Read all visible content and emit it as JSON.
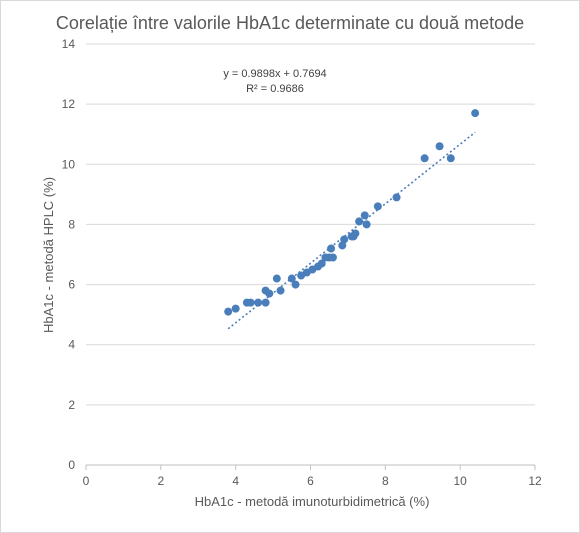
{
  "chart_data": {
    "type": "scatter",
    "title": "Corelație între valorile HbA1c determinate cu două metode",
    "xlabel": "HbA1c - metodă imunoturbidimetrică (%)",
    "ylabel": "HbA1c - metodă HPLC (%)",
    "xlim": [
      0,
      12
    ],
    "ylim": [
      0,
      14
    ],
    "xticks": [
      "0",
      "2",
      "4",
      "6",
      "8",
      "10",
      "12"
    ],
    "yticks": [
      "0",
      "2",
      "4",
      "6",
      "8",
      "10",
      "12",
      "14"
    ],
    "grid": "horizontal",
    "legend": "none",
    "colors": {
      "points": "#4a7ebb",
      "trendline": "#4a7ebb",
      "grid": "#d9d9d9",
      "axis": "#bfbfbf"
    },
    "series": [
      {
        "x": [
          3.8,
          4.0,
          4.3,
          4.4,
          4.6,
          4.8,
          4.8,
          4.9,
          5.1,
          5.2,
          5.5,
          5.6,
          5.75,
          5.9,
          6.05,
          6.2,
          6.3,
          6.4,
          6.5,
          6.55,
          6.6,
          6.85,
          6.9,
          7.1,
          7.15,
          7.2,
          7.3,
          7.45,
          7.5,
          7.8,
          8.3,
          9.05,
          9.45,
          9.75,
          10.4
        ],
        "y": [
          5.1,
          5.2,
          5.4,
          5.4,
          5.4,
          5.8,
          5.4,
          5.7,
          6.2,
          5.8,
          6.2,
          6.0,
          6.3,
          6.4,
          6.5,
          6.6,
          6.7,
          6.9,
          6.9,
          7.2,
          6.9,
          7.3,
          7.5,
          7.6,
          7.6,
          7.7,
          8.1,
          8.3,
          8.0,
          8.6,
          8.9,
          10.2,
          10.6,
          10.2,
          11.7
        ]
      }
    ],
    "trendline": {
      "type": "linear",
      "slope": 0.9898,
      "intercept": 0.7694,
      "x_from": 3.8,
      "x_to": 10.4
    },
    "annotations": {
      "equation": "y = 0.9898x + 0.7694",
      "r_squared": "R² = 0.9686"
    }
  }
}
